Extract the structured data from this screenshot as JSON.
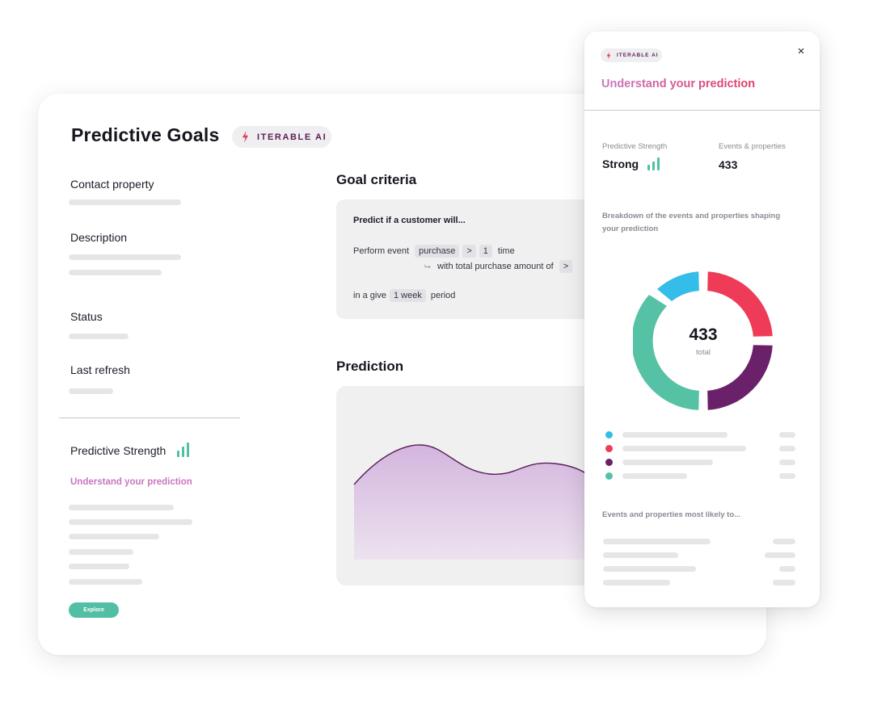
{
  "main": {
    "title": "Predictive Goals",
    "badge": "ITERABLE AI",
    "fields": {
      "contact_property": "Contact property",
      "description": "Description",
      "status": "Status",
      "last_refresh": "Last refresh"
    },
    "predictive_strength_label": "Predictive Strength",
    "understand_link": "Understand your prediction",
    "explore_button": "Explore",
    "goal_criteria": {
      "title": "Goal criteria",
      "line1": "Predict if a customer will...",
      "perform_event": "Perform event",
      "event_value": "purchase",
      "operator": ">",
      "count": "1",
      "time_word": "time",
      "with_total": "with total purchase amount of",
      "with_total_operator": ">",
      "in_a_give": "in a give",
      "period_value": "1 week",
      "period_word": "period"
    },
    "prediction": {
      "title": "Prediction"
    }
  },
  "side": {
    "badge": "ITERABLE AI",
    "close_icon": "×",
    "title": "Understand your prediction",
    "predictive_strength_label": "Predictive Strength",
    "predictive_strength_value": "Strong",
    "events_label": "Events & properties",
    "events_value": "433",
    "breakdown_text": "Breakdown of the events and properties shaping your prediction",
    "donut": {
      "total_value": "433",
      "total_label": "total"
    },
    "most_likely_label": "Events and properties most likely to..."
  },
  "colors": {
    "blue": "#35bde9",
    "red": "#ee3b58",
    "purple": "#6b2169",
    "green": "#55c1a5",
    "accent_pink": "#c877bf"
  }
}
